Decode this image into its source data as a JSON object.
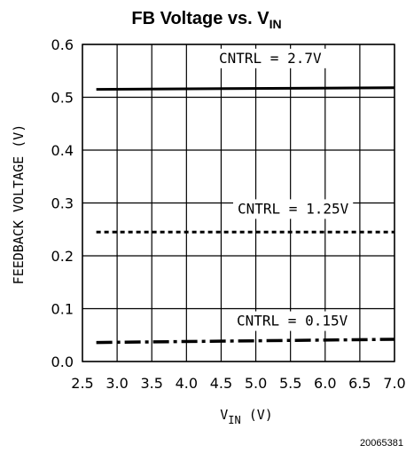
{
  "chart_data": {
    "type": "line",
    "title": {
      "main": "FB Voltage vs. V",
      "sub": "IN"
    },
    "xlabel": {
      "main": "V",
      "sub": "IN",
      "unit": " (V)"
    },
    "ylabel": "FEEDBACK VOLTAGE (V)",
    "xlim": [
      2.5,
      7.0
    ],
    "ylim": [
      0.0,
      0.6
    ],
    "x_ticks": [
      "2.5",
      "3.0",
      "3.5",
      "4.0",
      "4.5",
      "5.0",
      "5.5",
      "6.0",
      "6.5",
      "7.0"
    ],
    "y_ticks": [
      "0.0",
      "0.1",
      "0.2",
      "0.3",
      "0.4",
      "0.5",
      "0.6"
    ],
    "grid": true,
    "series": [
      {
        "name": "CNTRL = 2.7V",
        "style": "solid",
        "x": [
          2.7,
          7.0
        ],
        "y": [
          0.515,
          0.518
        ]
      },
      {
        "name": "CNTRL = 1.25V",
        "style": "dotted",
        "x": [
          2.7,
          7.0
        ],
        "y": [
          0.245,
          0.245
        ]
      },
      {
        "name": "CNTRL = 0.15V",
        "style": "dashdot",
        "x": [
          2.7,
          7.0
        ],
        "y": [
          0.036,
          0.042
        ]
      }
    ],
    "figure_id": "20065381"
  },
  "colors": {
    "ink": "#000000",
    "background": "#ffffff"
  }
}
